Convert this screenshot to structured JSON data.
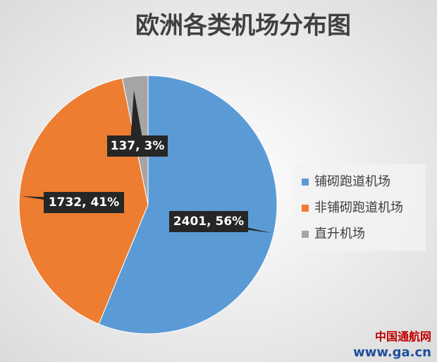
{
  "chart_data": {
    "type": "pie",
    "title": "欧洲各类机场分布图",
    "categories": [
      "铺砌跑道机场",
      "非铺砌跑道机场",
      "直升机场"
    ],
    "values": [
      2401,
      1732,
      137
    ],
    "value_labels": [
      "2401, 56%",
      "1732, 41%",
      "137, 3%"
    ],
    "colors": [
      "#5b9bd5",
      "#ed7d31",
      "#a5a5a5"
    ],
    "legend": "right"
  },
  "watermark": {
    "name": "中国通航网",
    "url": "www.ga.cn"
  }
}
